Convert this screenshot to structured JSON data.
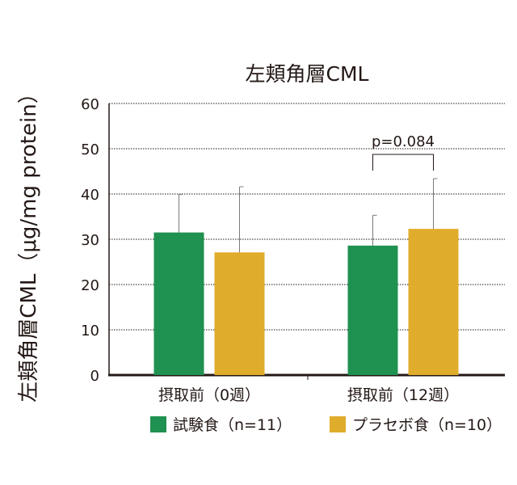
{
  "chart_data": {
    "type": "bar",
    "title": "左頬角層CML",
    "ylabel": "左頬角層CML（μg/mg protein）",
    "xlabel": "",
    "ylim": [
      0,
      60
    ],
    "yticks": [
      0,
      10,
      20,
      30,
      40,
      50,
      60
    ],
    "grid": true,
    "legend_position": "bottom",
    "categories": [
      "摂取前（0週）",
      "摂取前（12週）"
    ],
    "series": [
      {
        "name": "試験食（n=11）",
        "color": "#1f9150",
        "values": [
          31.5,
          28.6
        ],
        "error": [
          8.4,
          6.7
        ]
      },
      {
        "name": "プラセボ食（n=10）",
        "color": "#e0ac2b",
        "values": [
          27.1,
          32.3
        ],
        "error": [
          14.5,
          11.1
        ]
      }
    ],
    "annotation": {
      "text": "p=0.084",
      "category_index": 1
    }
  }
}
